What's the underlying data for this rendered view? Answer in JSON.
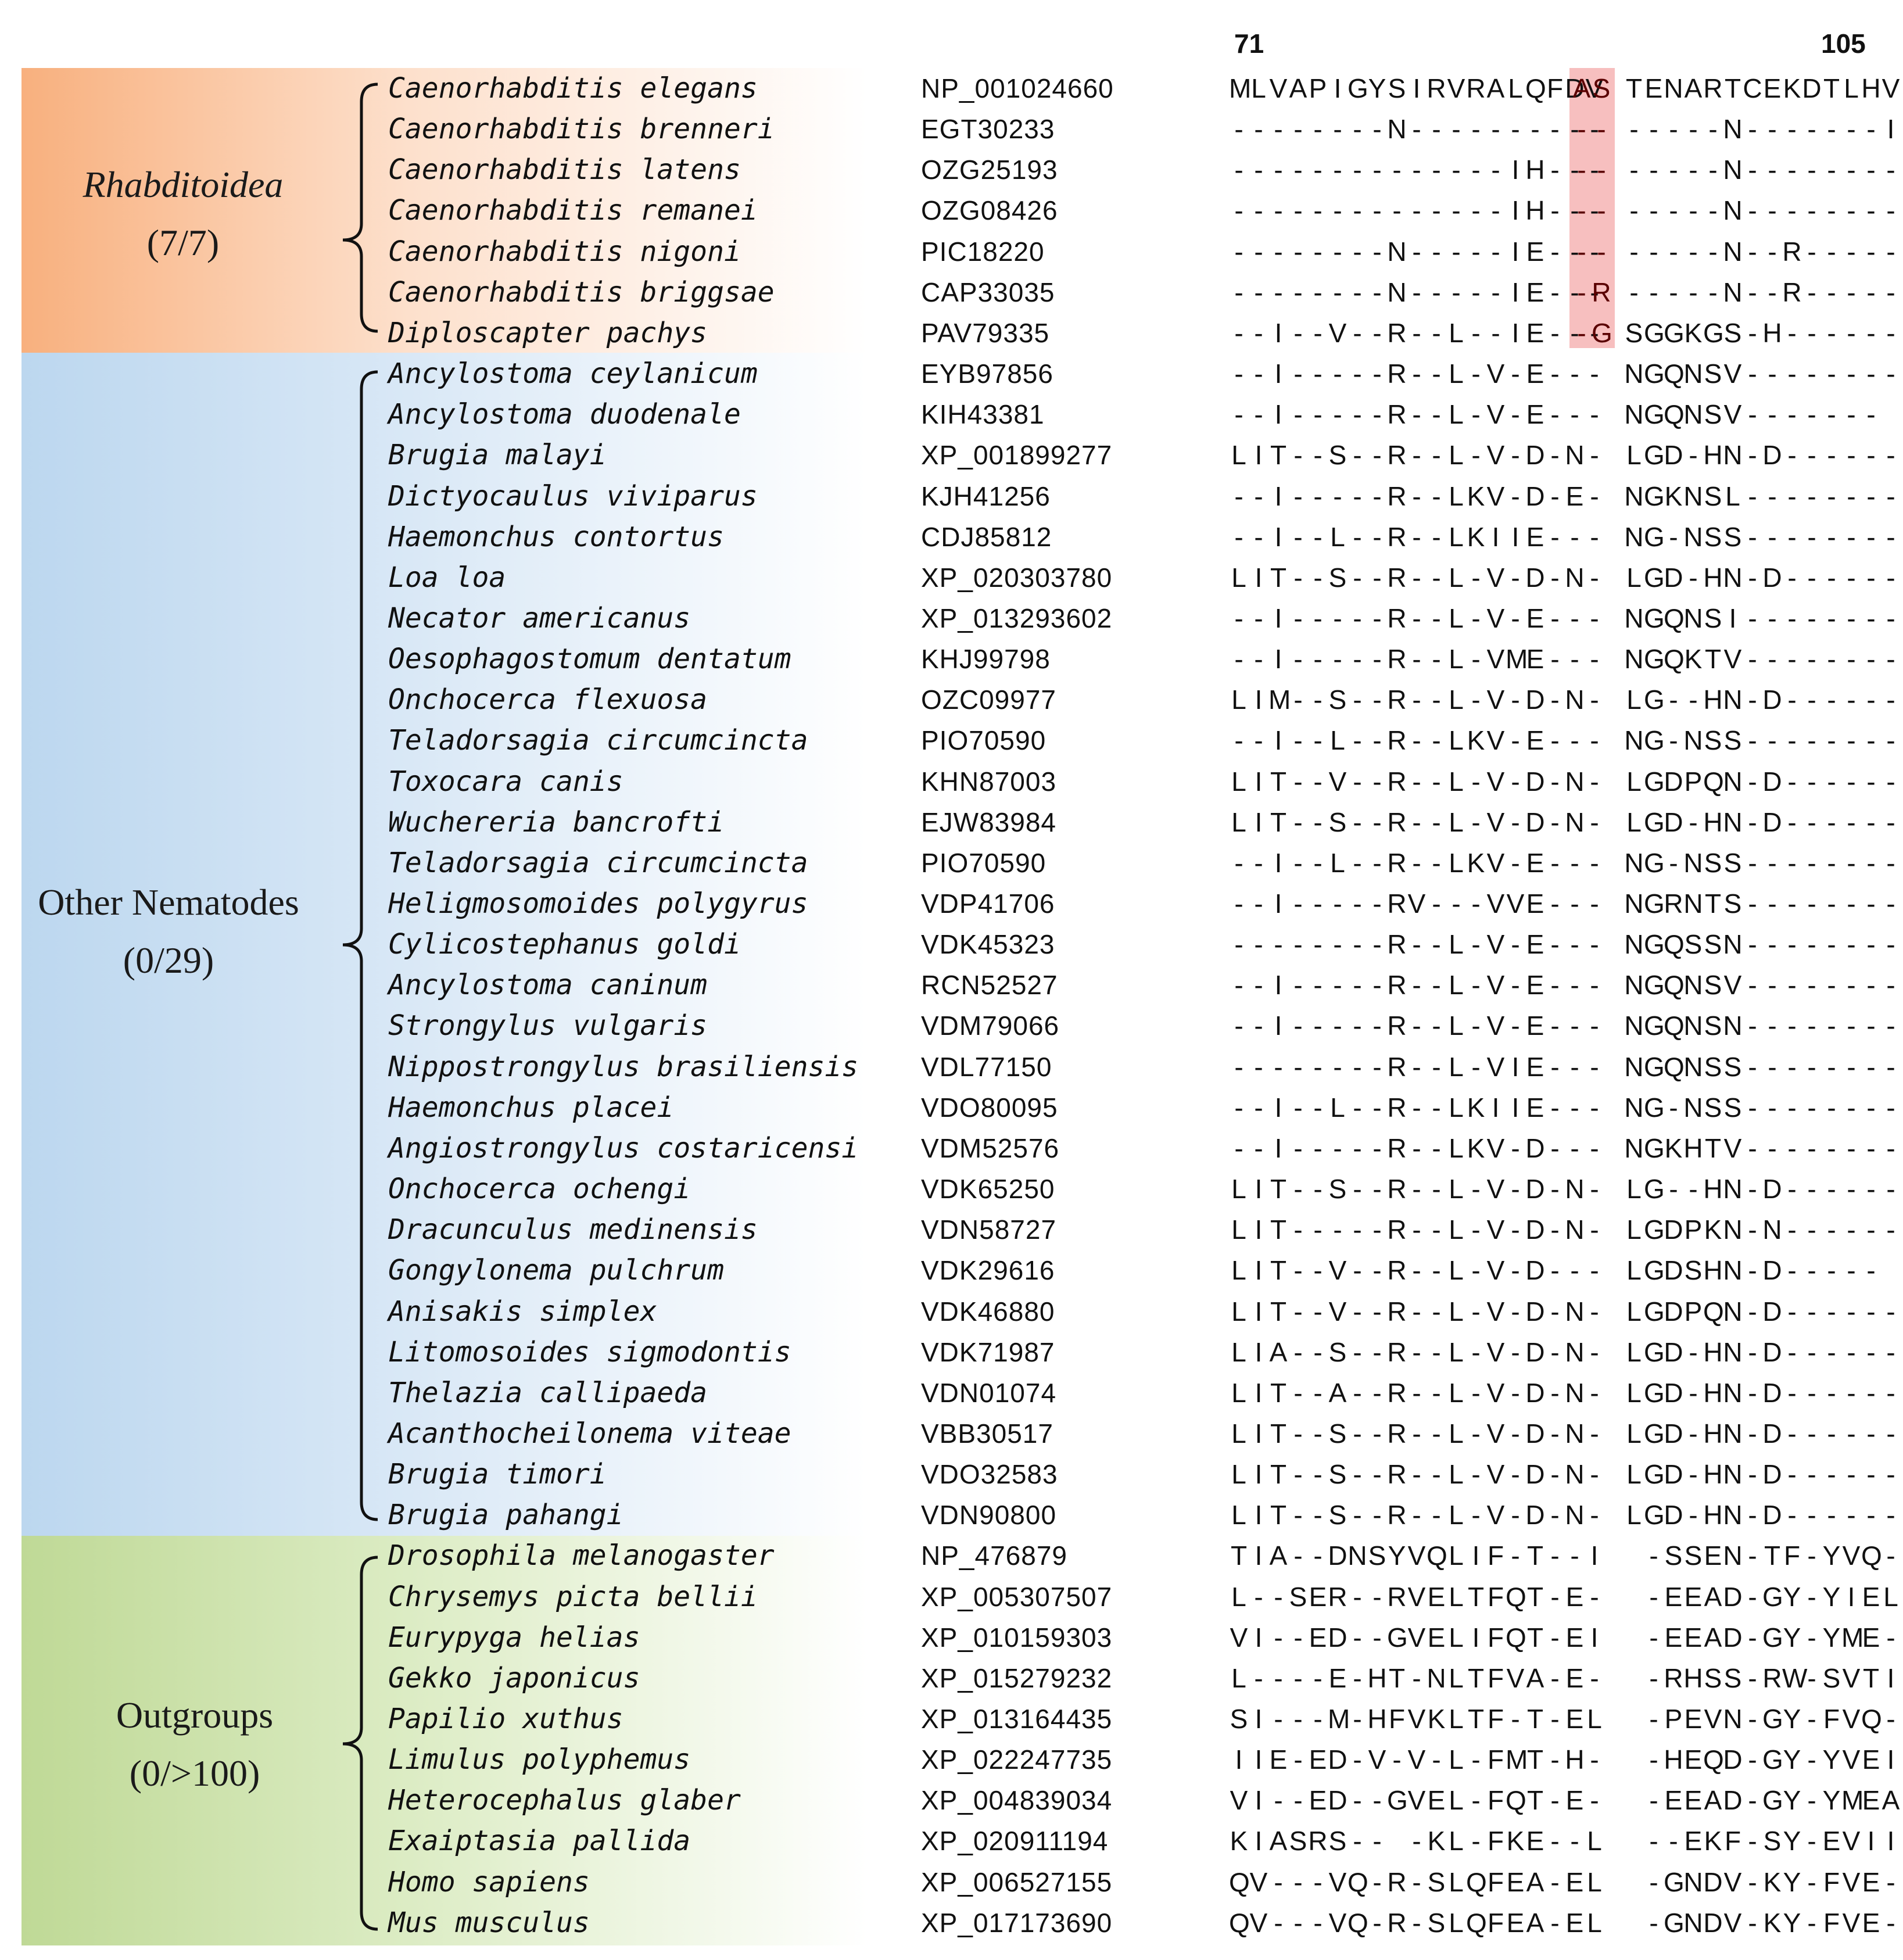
{
  "positions": {
    "start": "71",
    "end": "105"
  },
  "groups": [
    {
      "name": "Rhabditoidea",
      "count": "(7/7)"
    },
    {
      "name": "Other Nematodes",
      "count": "(0/29)"
    },
    {
      "name": "Outgroups",
      "count": "(0/>100)"
    }
  ],
  "colors": {
    "rhabditoidea": "#f8b07e",
    "nematodes": "#bcd7ef",
    "outgroups": "#bfd996",
    "highlight": "#f7bfbf"
  },
  "rows": [
    {
      "species": "Caenorhabditis elegans",
      "accession": "NP_001024660",
      "seq_a": "MLVAPIGYSIRVRALQFDV",
      "seq_b": "AS",
      "seq_c": "TENARTCEKDTLHV"
    },
    {
      "species": "Caenorhabditis brenneri",
      "accession": "EGT30233",
      "seq_a": "--------N----------",
      "seq_b": "--",
      "seq_c": "-----N-------I"
    },
    {
      "species": "Caenorhabditis latens",
      "accession": "OZG25193",
      "seq_a": "--------------IH---",
      "seq_b": "--",
      "seq_c": "-----N--------"
    },
    {
      "species": "Caenorhabditis remanei",
      "accession": "OZG08426",
      "seq_a": "--------------IH---",
      "seq_b": "--",
      "seq_c": "-----N--------"
    },
    {
      "species": "Caenorhabditis nigoni",
      "accession": "PIC18220",
      "seq_a": "--------N-----IE---",
      "seq_b": "--",
      "seq_c": "-----N--R-----"
    },
    {
      "species": "Caenorhabditis briggsae",
      "accession": "CAP33035",
      "seq_a": "--------N-----IE---",
      "seq_b": "-R",
      "seq_c": "-----N--R-----"
    },
    {
      "species": "Diploscapter pachys",
      "accession": "PAV79335",
      "seq_a": "--I--V--R--L--IE---",
      "seq_b": "-G",
      "seq_c": "SGGKGS-H------"
    },
    {
      "species": "Ancylostoma ceylanicum",
      "accession": "EYB97856",
      "seq_a": "--I-----R--L-V-E---",
      "seq_b": "",
      "seq_c": "NGQNSV--------"
    },
    {
      "species": "Ancylostoma duodenale",
      "accession": "KIH43381",
      "seq_a": "--I-----R--L-V-E---",
      "seq_b": "",
      "seq_c": "NGQNSV-------"
    },
    {
      "species": "Brugia malayi",
      "accession": "XP_001899277",
      "seq_a": "LIT--S--R--L-V-D-N-",
      "seq_b": "",
      "seq_c": "LGD-HN-D------"
    },
    {
      "species": "Dictyocaulus viviparus",
      "accession": "KJH41256",
      "seq_a": "--I-----R--LKV-D-E-",
      "seq_b": "",
      "seq_c": "NGKNSL--------"
    },
    {
      "species": "Haemonchus contortus",
      "accession": "CDJ85812",
      "seq_a": "--I--L--R--LKIIE---",
      "seq_b": "",
      "seq_c": "NG-NSS--------"
    },
    {
      "species": "Loa loa",
      "accession": "XP_020303780",
      "seq_a": "LIT--S--R--L-V-D-N-",
      "seq_b": "",
      "seq_c": "LGD-HN-D------"
    },
    {
      "species": "Necator americanus",
      "accession": "XP_013293602",
      "seq_a": "--I-----R--L-V-E---",
      "seq_b": "",
      "seq_c": "NGQNSI--------"
    },
    {
      "species": "Oesophagostomum dentatum",
      "accession": "KHJ99798",
      "seq_a": "--I-----R--L-VME---",
      "seq_b": "",
      "seq_c": "NGQKTV--------"
    },
    {
      "species": "Onchocerca flexuosa",
      "accession": "OZC09977",
      "seq_a": "LIM--S--R--L-V-D-N-",
      "seq_b": "",
      "seq_c": "LG--HN-D------"
    },
    {
      "species": "Teladorsagia circumcincta",
      "accession": "PIO70590",
      "seq_a": "--I--L--R--LKV-E---",
      "seq_b": "",
      "seq_c": "NG-NSS--------"
    },
    {
      "species": "Toxocara canis",
      "accession": "KHN87003",
      "seq_a": "LIT--V--R--L-V-D-N-",
      "seq_b": "",
      "seq_c": "LGDPQN-D------"
    },
    {
      "species": "Wuchereria bancrofti",
      "accession": "EJW83984",
      "seq_a": "LIT--S--R--L-V-D-N-",
      "seq_b": "",
      "seq_c": "LGD-HN-D------"
    },
    {
      "species": "Teladorsagia circumcincta",
      "accession": "PIO70590",
      "seq_a": "--I--L--R--LKV-E---",
      "seq_b": "",
      "seq_c": "NG-NSS--------"
    },
    {
      "species": "Heligmosomoides polygyrus",
      "accession": "VDP41706",
      "seq_a": "--I-----RV---VVE---",
      "seq_b": "",
      "seq_c": "NGRNTS--------"
    },
    {
      "species": "Cylicostephanus goldi",
      "accession": "VDK45323",
      "seq_a": "--------R--L-V-E---",
      "seq_b": "",
      "seq_c": "NGQSSN--------"
    },
    {
      "species": "Ancylostoma caninum",
      "accession": "RCN52527",
      "seq_a": "--I-----R--L-V-E---",
      "seq_b": "",
      "seq_c": "NGQNSV--------"
    },
    {
      "species": "Strongylus vulgaris",
      "accession": "VDM79066",
      "seq_a": "--I-----R--L-V-E---",
      "seq_b": "",
      "seq_c": "NGQNSN--------"
    },
    {
      "species": "Nippostrongylus brasiliensis",
      "accession": "VDL77150",
      "seq_a": "--------R--L-VIE---",
      "seq_b": "",
      "seq_c": "NGQNSS--------"
    },
    {
      "species": "Haemonchus placei",
      "accession": "VDO80095",
      "seq_a": "--I--L--R--LKIIE---",
      "seq_b": "",
      "seq_c": "NG-NSS--------"
    },
    {
      "species": "Angiostrongylus costaricensi",
      "accession": "VDM52576",
      "seq_a": "--I-----R--LKV-D---",
      "seq_b": "",
      "seq_c": "NGKHTV--------"
    },
    {
      "species": "Onchocerca ochengi",
      "accession": "VDK65250",
      "seq_a": "LIT--S--R--L-V-D-N-",
      "seq_b": "",
      "seq_c": "LG--HN-D------"
    },
    {
      "species": "Dracunculus medinensis",
      "accession": "VDN58727",
      "seq_a": "LIT-----R--L-V-D-N-",
      "seq_b": "",
      "seq_c": "LGDPKN-N------"
    },
    {
      "species": "Gongylonema pulchrum",
      "accession": "VDK29616",
      "seq_a": "LIT--V--R--L-V-D---",
      "seq_b": "",
      "seq_c": "LGDSHN-D-----"
    },
    {
      "species": "Anisakis simplex",
      "accession": "VDK46880",
      "seq_a": "LIT--V--R--L-V-D-N-",
      "seq_b": "",
      "seq_c": "LGDPQN-D------"
    },
    {
      "species": "Litomosoides sigmodontis",
      "accession": "VDK71987",
      "seq_a": "LIA--S--R--L-V-D-N-",
      "seq_b": "",
      "seq_c": "LGD-HN-D------"
    },
    {
      "species": "Thelazia callipaeda",
      "accession": "VDN01074",
      "seq_a": "LIT--A--R--L-V-D-N-",
      "seq_b": "",
      "seq_c": "LGD-HN-D------"
    },
    {
      "species": "Acanthocheilonema viteae",
      "accession": "VBB30517",
      "seq_a": "LIT--S--R--L-V-D-N-",
      "seq_b": "",
      "seq_c": "LGD-HN-D------"
    },
    {
      "species": "Brugia timori",
      "accession": "VDO32583",
      "seq_a": "LIT--S--R--L-V-D-N-",
      "seq_b": "",
      "seq_c": "LGD-HN-D------"
    },
    {
      "species": "Brugia pahangi",
      "accession": "VDN90800",
      "seq_a": "LIT--S--R--L-V-D-N-",
      "seq_b": "",
      "seq_c": "LGD-HN-D------"
    },
    {
      "species": "Drosophila melanogaster",
      "accession": "NP_476879",
      "seq_a": "TIA--DNSYVQLIF-T--I",
      "seq_b": "",
      "seq_c": " -SSEN-TF-YVQ-"
    },
    {
      "species": "Chrysemys picta bellii",
      "accession": "XP_005307507",
      "seq_a": "L--SER--RVELTFQT-E-",
      "seq_b": "",
      "seq_c": " -EEAD-GY-YIEL"
    },
    {
      "species": "Eurypyga helias",
      "accession": "XP_010159303",
      "seq_a": "VI--ED--GVELIFQT-EI",
      "seq_b": "",
      "seq_c": " -EEAD-GY-YME-"
    },
    {
      "species": "Gekko japonicus",
      "accession": "XP_015279232",
      "seq_a": "L----E-HT-NLTFVA-E-",
      "seq_b": "",
      "seq_c": " -RHSS-RW-SVTI"
    },
    {
      "species": "Papilio xuthus",
      "accession": "XP_013164435",
      "seq_a": "SI---M-HFVKLTF-T-EL",
      "seq_b": "",
      "seq_c": " -PEVN-GY-FVQ-"
    },
    {
      "species": "Limulus polyphemus",
      "accession": "XP_022247735",
      "seq_a": "IIE-ED-V-V-L-FMT-H-",
      "seq_b": "",
      "seq_c": " -HEQD-GY-YVEI"
    },
    {
      "species": "Heterocephalus glaber",
      "accession": "XP_004839034",
      "seq_a": "VI--ED--GVEL-FQT-E-",
      "seq_b": "",
      "seq_c": " -EEAD-GY-YMEA"
    },
    {
      "species": "Exaiptasia pallida",
      "accession": "XP_020911194",
      "seq_a": "KIASRS-- -KL-FKE--L",
      "seq_b": "",
      "seq_c": " --EKF-SY-EVII"
    },
    {
      "species": "Homo sapiens",
      "accession": "XP_006527155",
      "seq_a": "QV---VQ-R-SLQFEA-EL",
      "seq_b": "",
      "seq_c": " -GNDV-KY-FVE-"
    },
    {
      "species": "Mus musculus",
      "accession": "XP_017173690",
      "seq_a": "QV---VQ-R-SLQFEA-EL",
      "seq_b": "",
      "seq_c": " -GNDV-KY-FVE-"
    }
  ]
}
